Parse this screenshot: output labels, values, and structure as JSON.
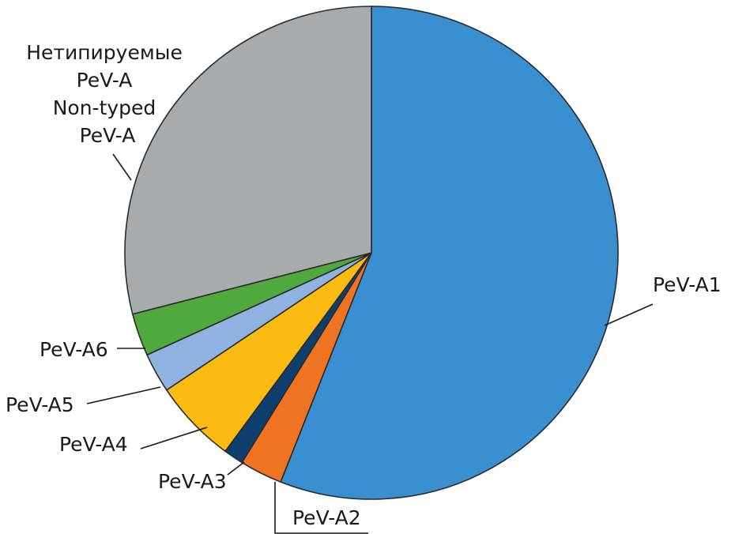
{
  "chart_data": {
    "type": "pie",
    "slices": [
      {
        "label": "PeV-A1",
        "value": 56.0,
        "color": "#3a8fd0"
      },
      {
        "label": "PeV-A2",
        "value": 2.8,
        "color": "#ee7322"
      },
      {
        "label": "PeV-A3",
        "value": 1.3,
        "color": "#0f3f6f"
      },
      {
        "label": "PeV-A4",
        "value": 5.5,
        "color": "#fbbb12"
      },
      {
        "label": "PeV-A5",
        "value": 2.6,
        "color": "#8fb2e0"
      },
      {
        "label": "PeV-A6",
        "value": 2.8,
        "color": "#4fa93c"
      },
      {
        "label_lines": [
          "Нетипируемые",
          "PeV-A",
          "Non-typed",
          "PeV-A"
        ],
        "value": 29.0,
        "color": "#a8abad"
      }
    ]
  }
}
